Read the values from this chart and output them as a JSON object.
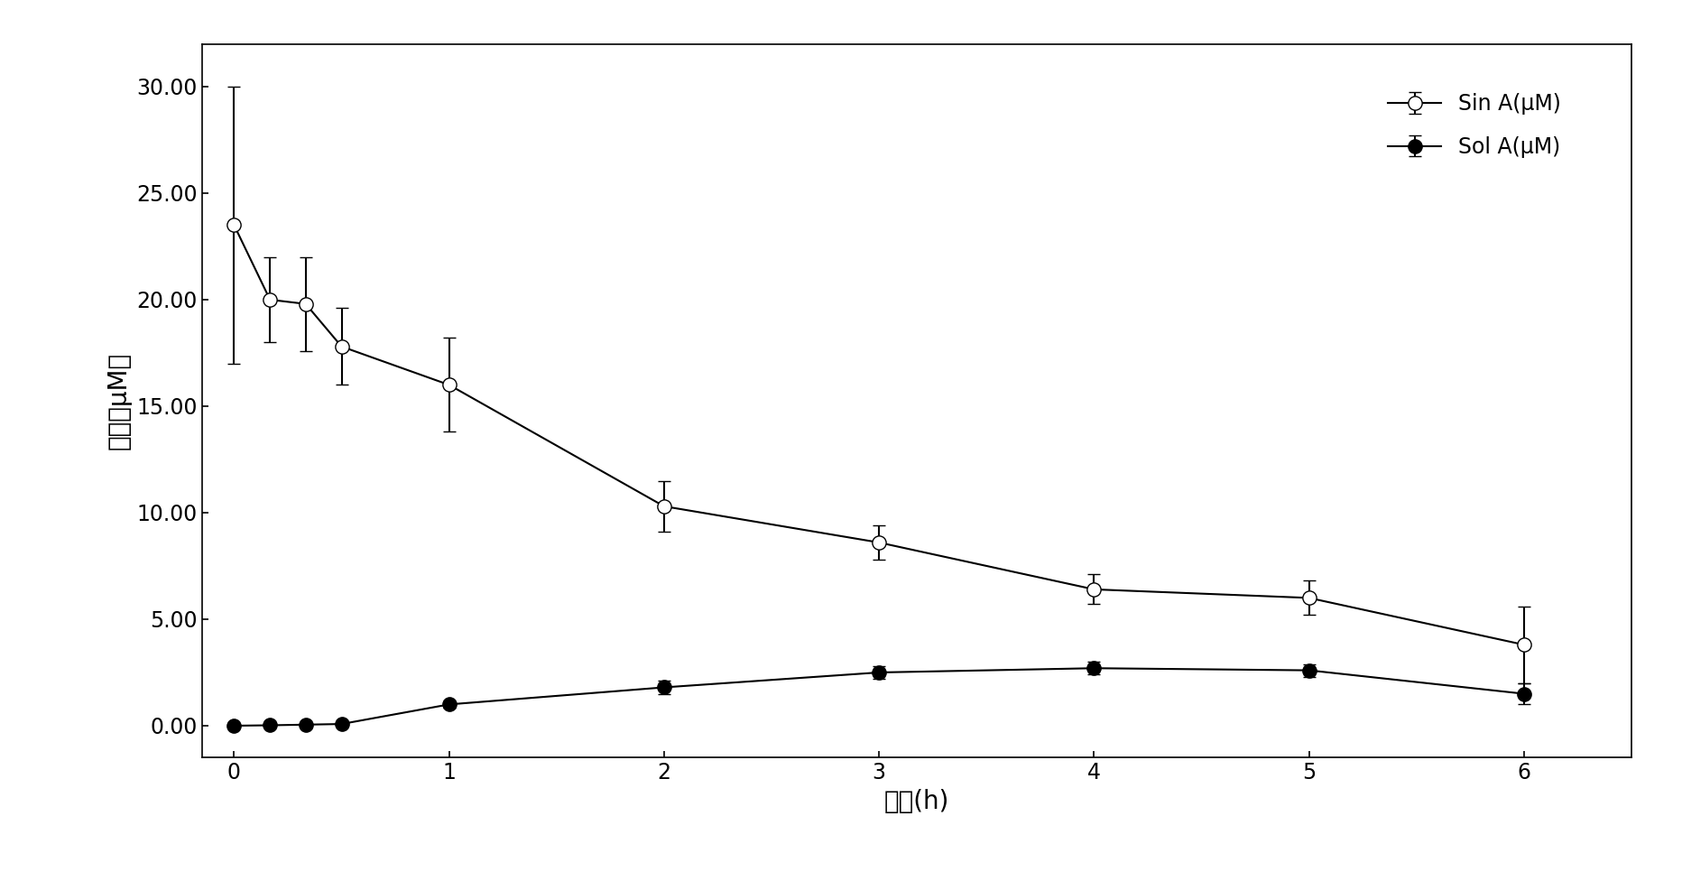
{
  "sin_a_x": [
    0,
    0.167,
    0.333,
    0.5,
    1,
    2,
    3,
    4,
    5,
    6
  ],
  "sin_a_y": [
    23.5,
    20.0,
    19.8,
    17.8,
    16.0,
    10.3,
    8.6,
    6.4,
    6.0,
    3.8
  ],
  "sin_a_yerr": [
    6.5,
    2.0,
    2.2,
    1.8,
    2.2,
    1.2,
    0.8,
    0.7,
    0.8,
    1.8
  ],
  "sol_a_x": [
    0,
    0.167,
    0.333,
    0.5,
    1,
    2,
    3,
    4,
    5,
    6
  ],
  "sol_a_y": [
    0.0,
    0.02,
    0.05,
    0.08,
    1.0,
    1.8,
    2.5,
    2.7,
    2.6,
    1.5
  ],
  "sol_a_yerr": [
    0.02,
    0.02,
    0.05,
    0.05,
    0.15,
    0.3,
    0.3,
    0.3,
    0.3,
    0.5
  ],
  "xlabel": "时间(h)",
  "ylabel": "浓度（μM）",
  "xlim": [
    -0.15,
    6.5
  ],
  "ylim": [
    -1.5,
    32.0
  ],
  "yticks": [
    0.0,
    5.0,
    10.0,
    15.0,
    20.0,
    25.0,
    30.0
  ],
  "xticks": [
    0,
    1,
    2,
    3,
    4,
    5,
    6
  ],
  "legend_sin": "Sin A(μM)",
  "legend_sol": "Sol A(μM)",
  "line_color": "#000000",
  "background_color": "#ffffff",
  "fontsize_label": 20,
  "fontsize_tick": 17,
  "fontsize_legend": 17
}
